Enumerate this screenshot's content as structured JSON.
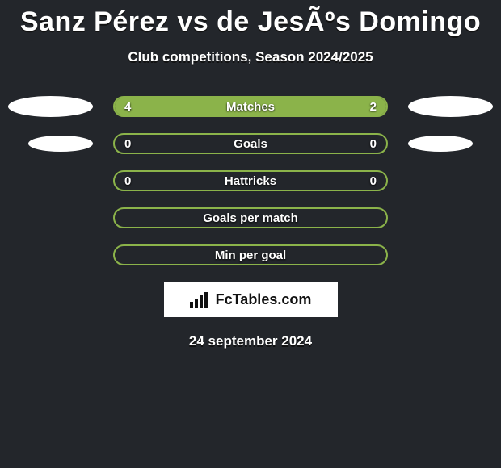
{
  "colors": {
    "background": "#23262b",
    "border_green": "#8bb34a",
    "fill_green": "#8bb34a",
    "text": "#ffffff"
  },
  "title": "Sanz Pérez vs de JesÃºs Domingo",
  "subtitle": "Club competitions, Season 2024/2025",
  "brand": "FcTables.com",
  "date": "24 september 2024",
  "rows": [
    {
      "label": "Matches",
      "left": "4",
      "right": "2",
      "left_pct": 66.7,
      "right_pct": 33.3,
      "show_ellipses": true
    },
    {
      "label": "Goals",
      "left": "0",
      "right": "0",
      "left_pct": 0,
      "right_pct": 0,
      "show_ellipses": true
    },
    {
      "label": "Hattricks",
      "left": "0",
      "right": "0",
      "left_pct": 0,
      "right_pct": 0,
      "show_ellipses": false
    },
    {
      "label": "Goals per match",
      "left": "",
      "right": "",
      "left_pct": 0,
      "right_pct": 0,
      "show_ellipses": false
    },
    {
      "label": "Min per goal",
      "left": "",
      "right": "",
      "left_pct": 0,
      "right_pct": 0,
      "show_ellipses": false
    }
  ]
}
